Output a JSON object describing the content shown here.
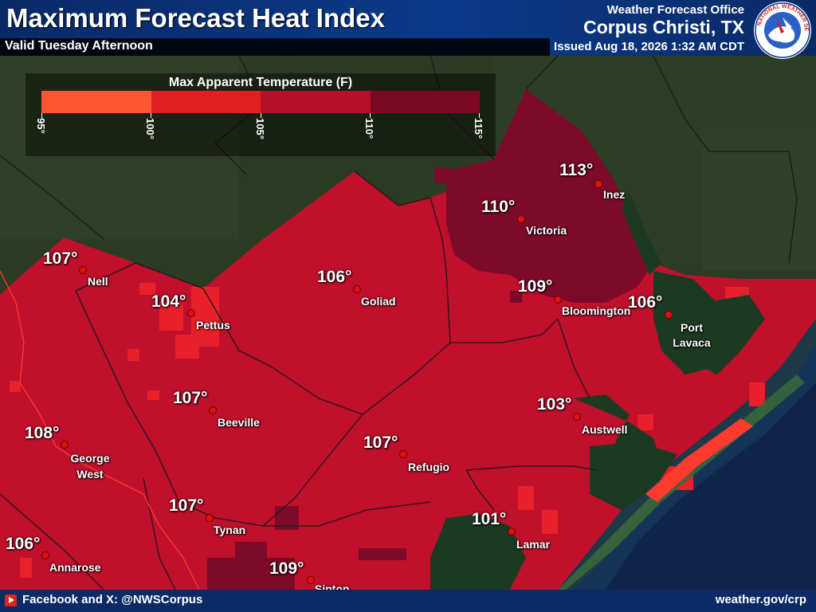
{
  "header": {
    "title": "Maximum Forecast Heat Index",
    "subtitle": "Valid Tuesday Afternoon",
    "office_label": "Weather Forecast Office",
    "office_name": "Corpus Christi, TX",
    "issued": "Issued Aug 18, 2026 1:32 AM CDT",
    "logo_text": "NATIONAL WEATHER SERVICE"
  },
  "legend": {
    "title": "Max Apparent Temperature (F)",
    "ticks": [
      "95°",
      "100°",
      "105°",
      "110°",
      "115°"
    ],
    "colors": [
      "#ff5533",
      "#e02020",
      "#b5102a",
      "#7a0a24"
    ]
  },
  "colors": {
    "land": "#2a3a22",
    "heat_105": "#c0102c",
    "heat_110": "#7d0a28",
    "heat_100": "#e8202a",
    "bay": "#1c3a22",
    "gulf": "#0e2448",
    "header": "#0b3a8a"
  },
  "cities": [
    {
      "name": "Inez",
      "temp": "113°"
    },
    {
      "name": "Victoria",
      "temp": "110°"
    },
    {
      "name": "Nell",
      "temp": "107°"
    },
    {
      "name": "Goliad",
      "temp": "106°"
    },
    {
      "name": "Pettus",
      "temp": "104°"
    },
    {
      "name": "Bloomington",
      "temp": "109°"
    },
    {
      "name": "Port Lavaca",
      "temp": "106°"
    },
    {
      "name": "Beeville",
      "temp": "107°"
    },
    {
      "name": "Austwell",
      "temp": "103°"
    },
    {
      "name": "George West",
      "temp": "108°"
    },
    {
      "name": "Refugio",
      "temp": "107°"
    },
    {
      "name": "Tynan",
      "temp": "107°"
    },
    {
      "name": "Lamar",
      "temp": "101°"
    },
    {
      "name": "Annarose",
      "temp": "106°"
    },
    {
      "name": "Sinton",
      "temp": "109°"
    }
  ],
  "footer": {
    "social": "Facebook and X: @NWSCorpus",
    "site": "weather.gov/crp"
  }
}
